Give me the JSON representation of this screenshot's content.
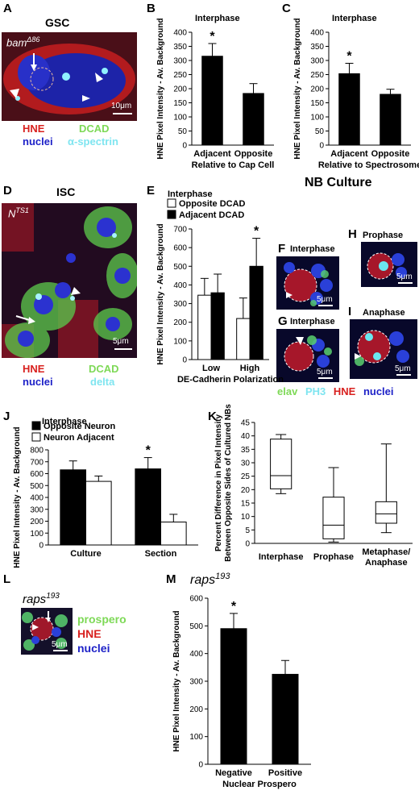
{
  "panels": {
    "A": {
      "letter": "A",
      "title": "GSC",
      "genotype": "bam",
      "genotype_sup": "Δ86",
      "scale": "10μm",
      "legend_left": [
        "HNE",
        "nuclei"
      ],
      "legend_right": [
        "DCAD",
        "α-spectrin"
      ]
    },
    "D": {
      "letter": "D",
      "title": "ISC",
      "genotype": "N",
      "genotype_sup": "TS1",
      "scale": "5μm",
      "legend_left": [
        "HNE",
        "nuclei"
      ],
      "legend_right": [
        "DCAD",
        "delta"
      ]
    },
    "NB": {
      "title": "NB  Culture",
      "F": {
        "letter": "F",
        "label": "Interphase",
        "scale": "5μm"
      },
      "H": {
        "letter": "H",
        "label": "Prophase",
        "scale": "5μm"
      },
      "G": {
        "letter": "G",
        "label": "Interphase",
        "scale": "5μm"
      },
      "I": {
        "letter": "I",
        "label": "Anaphase",
        "scale": "5μm"
      },
      "legend": [
        "elav",
        "PH3",
        "HNE",
        "nuclei"
      ]
    },
    "L": {
      "letter": "L",
      "genotype": "raps",
      "genotype_sup": "193",
      "scale": "5μm",
      "legend": [
        "prospero",
        "HNE",
        "nuclei"
      ]
    }
  },
  "colors": {
    "red": "#d8201e",
    "green": "#7ed957",
    "cyan": "#7fe5f0",
    "blue": "#1e22c8",
    "bar": "#000000"
  },
  "chart_data": [
    {
      "id": "B",
      "type": "bar",
      "title": "Interphase",
      "ylabel": "HNE  Pixel Intensity - Av. Background",
      "categories": [
        "Adjacent",
        "Opposite"
      ],
      "xlabel": "Relative to Cap Cell",
      "values": [
        315,
        183
      ],
      "errors": [
        45,
        35
      ],
      "ylim": [
        0,
        400
      ],
      "yticks": [
        0,
        50,
        100,
        150,
        200,
        250,
        300,
        350,
        400
      ],
      "significance": [
        "*",
        ""
      ]
    },
    {
      "id": "C",
      "type": "bar",
      "title": "Interphase",
      "ylabel": "HNE  Pixel Intensity - Av. Background",
      "categories": [
        "Adjacent",
        "Opposite"
      ],
      "xlabel": "Relative to Spectrosome",
      "values": [
        253,
        180
      ],
      "errors": [
        37,
        18
      ],
      "ylim": [
        0,
        400
      ],
      "yticks": [
        0,
        50,
        100,
        150,
        200,
        250,
        300,
        350,
        400
      ],
      "significance": [
        "*",
        ""
      ]
    },
    {
      "id": "E",
      "type": "bar",
      "title": "Interphase",
      "ylabel": "HNE  Pixel Intensity - Av. Background",
      "categories": [
        "Low",
        "High"
      ],
      "xlabel": "DE-Cadherin Polarization",
      "series": [
        {
          "name": "Opposite DCAD",
          "fill": "#ffffff",
          "values": [
            345,
            220
          ],
          "errors": [
            90,
            110
          ]
        },
        {
          "name": "Adjacent DCAD",
          "fill": "#000000",
          "values": [
            358,
            500
          ],
          "errors": [
            100,
            150
          ]
        }
      ],
      "ylim": [
        0,
        700
      ],
      "yticks": [
        0,
        100,
        200,
        300,
        400,
        500,
        600,
        700
      ],
      "significance": [
        "",
        "*"
      ]
    },
    {
      "id": "J",
      "type": "bar",
      "title": "Interphase",
      "ylabel": "HNE Pixel Intensity - Av. Background",
      "categories": [
        "Culture",
        "Section"
      ],
      "series": [
        {
          "name": "Opposite Neuron",
          "fill": "#000000",
          "values": [
            632,
            640
          ],
          "errors": [
            75,
            95
          ]
        },
        {
          "name": "Neuron Adjacent",
          "fill": "#ffffff",
          "values": [
            535,
            193
          ],
          "errors": [
            45,
            65
          ]
        }
      ],
      "ylim": [
        0,
        800
      ],
      "yticks": [
        0,
        100,
        200,
        300,
        400,
        500,
        600,
        700,
        800
      ],
      "significance": [
        "",
        "*"
      ]
    },
    {
      "id": "K",
      "type": "box",
      "ylabel": "Percent Difference in Pixel Intensity Between Opposite Sides of Cultured NBs",
      "categories": [
        "Interphase",
        "Prophase",
        "Metaphase/ Anaphase"
      ],
      "boxes": [
        {
          "min": 18.5,
          "q1": 20.3,
          "median": 25.2,
          "q3": 38.8,
          "max": 40.5
        },
        {
          "min": 0.5,
          "q1": 1.7,
          "median": 6.8,
          "q3": 17.2,
          "max": 28.2
        },
        {
          "min": 4.0,
          "q1": 7.5,
          "median": 11.0,
          "q3": 15.5,
          "max": 37.0
        }
      ],
      "ylim": [
        0,
        45
      ],
      "yticks": [
        0,
        5,
        10,
        15,
        20,
        25,
        30,
        35,
        40,
        45
      ]
    },
    {
      "id": "M",
      "type": "bar",
      "title": "raps193",
      "ylabel": "HNE  Pixel Intensity - Av. Background",
      "categories": [
        "Negative",
        "Positive"
      ],
      "xlabel": "Nuclear Prospero",
      "values": [
        490,
        325
      ],
      "errors": [
        55,
        50
      ],
      "ylim": [
        0,
        600
      ],
      "yticks": [
        0,
        100,
        200,
        300,
        400,
        500,
        600
      ],
      "significance": [
        "*",
        ""
      ]
    }
  ]
}
